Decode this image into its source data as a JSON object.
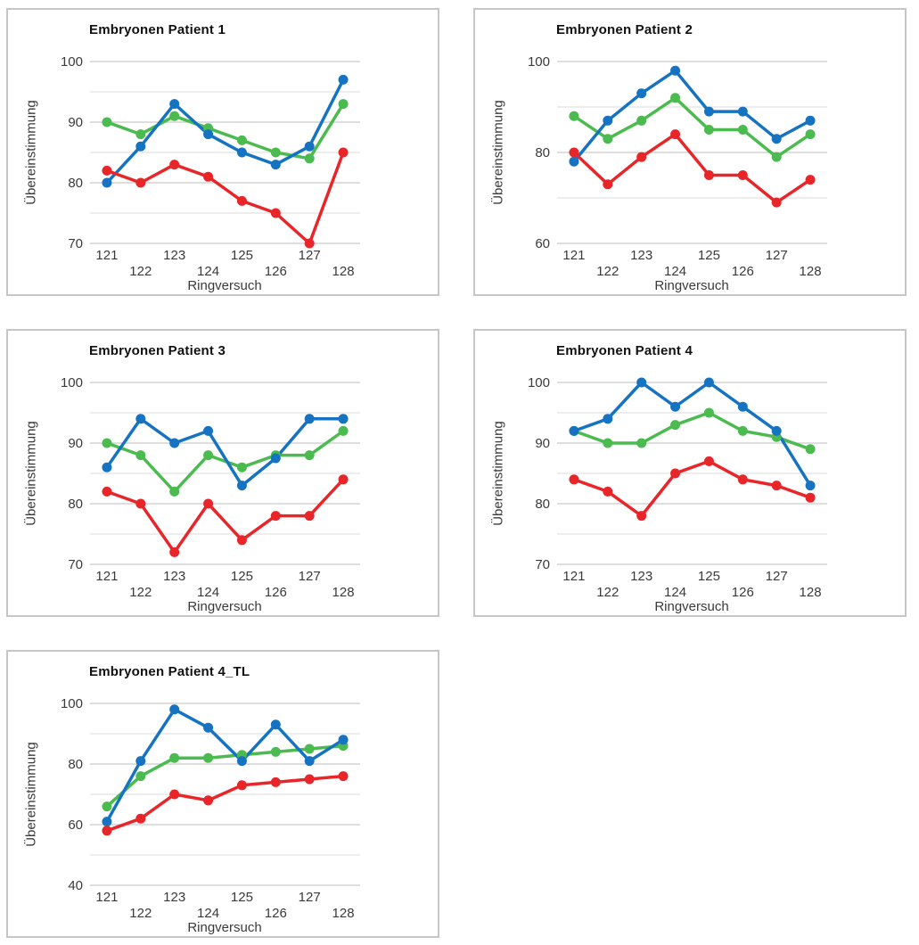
{
  "colors": {
    "blue": "#1673c1",
    "green": "#4bbb4f",
    "red": "#e8262a",
    "grid_major": "#c9c9c9",
    "grid_minor": "#e2e2e2",
    "panel_border": "#c6c6c6",
    "text": "#3a3a3a",
    "title_text": "#111111"
  },
  "chart_data": [
    {
      "type": "line",
      "title": "Embryonen Patient 1",
      "xlabel": "Ringversuch",
      "ylabel": "Übereinstimmung",
      "categories": [
        "121",
        "122",
        "123",
        "124",
        "125",
        "126",
        "127",
        "128"
      ],
      "ylim": [
        70,
        100
      ],
      "grid_step": 5,
      "label_step": 10,
      "grid": true,
      "legend": "none",
      "series": [
        {
          "name": "green",
          "color_key": "green",
          "values": [
            90,
            88,
            91,
            89,
            87,
            85,
            84,
            93
          ]
        },
        {
          "name": "blue",
          "color_key": "blue",
          "values": [
            80,
            86,
            93,
            88,
            85,
            83,
            86,
            97
          ]
        },
        {
          "name": "red",
          "color_key": "red",
          "values": [
            82,
            80,
            83,
            81,
            77,
            75,
            70,
            85
          ]
        }
      ]
    },
    {
      "type": "line",
      "title": "Embryonen Patient 2",
      "xlabel": "Ringversuch",
      "ylabel": "Übereinstimmung",
      "categories": [
        "121",
        "122",
        "123",
        "124",
        "125",
        "126",
        "127",
        "128"
      ],
      "ylim": [
        60,
        100
      ],
      "grid_step": 10,
      "label_step": 20,
      "grid": true,
      "legend": "none",
      "series": [
        {
          "name": "green",
          "color_key": "green",
          "values": [
            88,
            83,
            87,
            92,
            85,
            85,
            79,
            84
          ]
        },
        {
          "name": "blue",
          "color_key": "blue",
          "values": [
            78,
            87,
            93,
            98,
            89,
            89,
            83,
            87
          ]
        },
        {
          "name": "red",
          "color_key": "red",
          "values": [
            80,
            73,
            79,
            84,
            75,
            75,
            69,
            74
          ]
        }
      ]
    },
    {
      "type": "line",
      "title": "Embryonen Patient 3",
      "xlabel": "Ringversuch",
      "ylabel": "Übereinstimmung",
      "categories": [
        "121",
        "122",
        "123",
        "124",
        "125",
        "126",
        "127",
        "128"
      ],
      "ylim": [
        70,
        100
      ],
      "grid_step": 5,
      "label_step": 10,
      "grid": true,
      "legend": "none",
      "series": [
        {
          "name": "green",
          "color_key": "green",
          "values": [
            90,
            88,
            82,
            88,
            86,
            88,
            88,
            92
          ]
        },
        {
          "name": "blue",
          "color_key": "blue",
          "values": [
            86,
            94,
            90,
            92,
            83,
            87.5,
            94,
            94
          ]
        },
        {
          "name": "red",
          "color_key": "red",
          "values": [
            82,
            80,
            72,
            80,
            74,
            78,
            78,
            84
          ]
        }
      ]
    },
    {
      "type": "line",
      "title": "Embryonen Patient 4",
      "xlabel": "Ringversuch",
      "ylabel": "Übereinstimmung",
      "categories": [
        "121",
        "122",
        "123",
        "124",
        "125",
        "126",
        "127",
        "128"
      ],
      "ylim": [
        70,
        100
      ],
      "grid_step": 5,
      "label_step": 10,
      "grid": true,
      "legend": "none",
      "series": [
        {
          "name": "green",
          "color_key": "green",
          "values": [
            92,
            90,
            90,
            93,
            95,
            92,
            91,
            89
          ]
        },
        {
          "name": "blue",
          "color_key": "blue",
          "values": [
            92,
            94,
            100,
            96,
            100,
            96,
            92,
            83
          ]
        },
        {
          "name": "red",
          "color_key": "red",
          "values": [
            84,
            82,
            78,
            85,
            87,
            84,
            83,
            81
          ]
        }
      ]
    },
    {
      "type": "line",
      "title": "Embryonen Patient 4_TL",
      "xlabel": "Ringversuch",
      "ylabel": "Übereinstimmung",
      "categories": [
        "121",
        "122",
        "123",
        "124",
        "125",
        "126",
        "127",
        "128"
      ],
      "ylim": [
        40,
        100
      ],
      "grid_step": 10,
      "label_step": 20,
      "grid": true,
      "legend": "none",
      "series": [
        {
          "name": "green",
          "color_key": "green",
          "values": [
            66,
            76,
            82,
            82,
            83,
            84,
            85,
            86
          ]
        },
        {
          "name": "blue",
          "color_key": "blue",
          "values": [
            61,
            81,
            98,
            92,
            81,
            93,
            81,
            88
          ]
        },
        {
          "name": "red",
          "color_key": "red",
          "values": [
            58,
            62,
            70,
            68,
            73,
            74,
            75,
            76
          ]
        }
      ]
    }
  ]
}
